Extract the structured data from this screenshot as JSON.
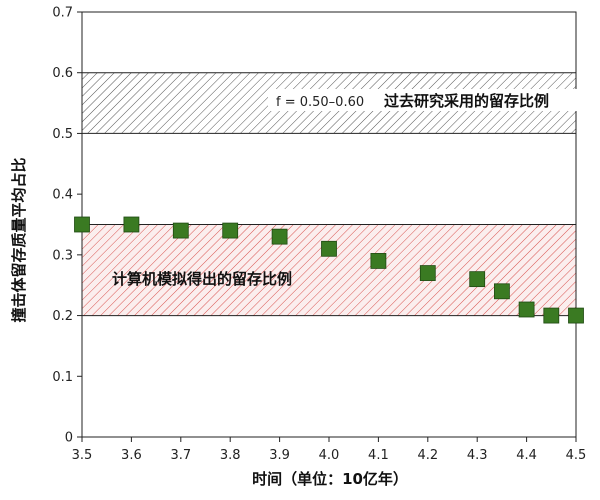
{
  "chart_data": {
    "type": "scatter",
    "xlabel": "时间（单位：10亿年）",
    "ylabel": "撞击体留存质量平均占比",
    "xlim": [
      3.5,
      4.5
    ],
    "ylim": [
      0,
      0.7
    ],
    "x_ticks": [
      "3.5",
      "3.6",
      "3.7",
      "3.8",
      "3.9",
      "4.0",
      "4.1",
      "4.2",
      "4.3",
      "4.4",
      "4.5"
    ],
    "y_ticks": [
      "0",
      "0.1",
      "0.2",
      "0.3",
      "0.4",
      "0.5",
      "0.6",
      "0.7"
    ],
    "grid": false,
    "series": [
      {
        "x": [
          3.5,
          3.6,
          3.7,
          3.8,
          3.9,
          4.0,
          4.1,
          4.2,
          4.3,
          4.35,
          4.4,
          4.45,
          4.5
        ],
        "y": [
          0.35,
          0.35,
          0.34,
          0.34,
          0.33,
          0.31,
          0.29,
          0.27,
          0.26,
          0.24,
          0.21,
          0.2,
          0.2
        ],
        "color": "#3a7a22",
        "marker": "square"
      }
    ],
    "bands": [
      {
        "y_range": [
          0.5,
          0.6
        ],
        "label_formula": "f = 0.50–0.60",
        "label": "过去研究采用的留存比例",
        "hatch_color": "#555555"
      },
      {
        "y_range": [
          0.2,
          0.35
        ],
        "label": "计算机模拟得出的留存比例",
        "hatch_color": "#d9534f",
        "fill_color": "#fbeeee"
      }
    ]
  }
}
